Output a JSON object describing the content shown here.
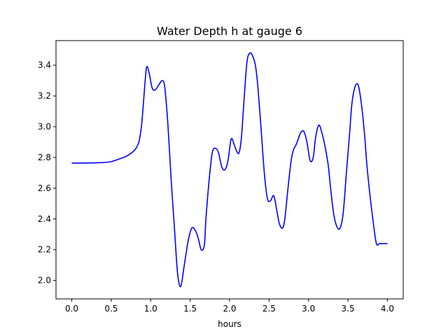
{
  "chart_data": {
    "type": "line",
    "title": "Water Depth h at gauge 6",
    "xlabel": "hours",
    "ylabel": "",
    "xlim": [
      -0.2,
      4.2
    ],
    "ylim": [
      1.88,
      3.56
    ],
    "xticks": [
      0.0,
      0.5,
      1.0,
      1.5,
      2.0,
      2.5,
      3.0,
      3.5,
      4.0
    ],
    "xtick_labels": [
      "0.0",
      "0.5",
      "1.0",
      "1.5",
      "2.0",
      "2.5",
      "3.0",
      "3.5",
      "4.0"
    ],
    "yticks": [
      2.0,
      2.2,
      2.4,
      2.6,
      2.8,
      3.0,
      3.2,
      3.4
    ],
    "ytick_labels": [
      "2.0",
      "2.2",
      "2.4",
      "2.6",
      "2.8",
      "3.0",
      "3.2",
      "3.4"
    ],
    "grid": false,
    "series": [
      {
        "color": "#0000ff",
        "x": [
          0.0,
          0.2,
          0.4,
          0.5,
          0.6,
          0.7,
          0.8,
          0.85,
          0.88,
          0.9,
          0.93,
          0.95,
          0.98,
          1.02,
          1.06,
          1.1,
          1.15,
          1.18,
          1.22,
          1.26,
          1.3,
          1.34,
          1.38,
          1.42,
          1.45,
          1.48,
          1.52,
          1.56,
          1.6,
          1.64,
          1.68,
          1.7,
          1.74,
          1.78,
          1.82,
          1.86,
          1.9,
          1.94,
          1.98,
          2.02,
          2.06,
          2.09,
          2.12,
          2.15,
          2.18,
          2.22,
          2.26,
          2.3,
          2.33,
          2.36,
          2.4,
          2.44,
          2.48,
          2.52,
          2.56,
          2.6,
          2.63,
          2.67,
          2.7,
          2.74,
          2.78,
          2.81,
          2.84,
          2.87,
          2.9,
          2.94,
          2.98,
          3.02,
          3.06,
          3.09,
          3.13,
          3.17,
          3.21,
          3.25,
          3.28,
          3.32,
          3.36,
          3.4,
          3.44,
          3.48,
          3.52,
          3.55,
          3.59,
          3.63,
          3.67,
          3.71,
          3.74,
          3.78,
          3.82,
          3.86,
          3.9,
          3.94,
          3.98,
          4.0
        ],
        "y": [
          2.763,
          2.764,
          2.767,
          2.773,
          2.79,
          2.81,
          2.85,
          2.9,
          2.99,
          3.1,
          3.3,
          3.39,
          3.35,
          3.25,
          3.24,
          3.27,
          3.3,
          3.25,
          3.0,
          2.65,
          2.35,
          2.05,
          1.96,
          2.08,
          2.18,
          2.27,
          2.34,
          2.33,
          2.28,
          2.2,
          2.23,
          2.4,
          2.65,
          2.83,
          2.86,
          2.83,
          2.74,
          2.72,
          2.78,
          2.92,
          2.88,
          2.84,
          2.83,
          2.93,
          3.15,
          3.42,
          3.48,
          3.45,
          3.39,
          3.25,
          2.98,
          2.7,
          2.53,
          2.52,
          2.55,
          2.45,
          2.37,
          2.34,
          2.4,
          2.6,
          2.78,
          2.85,
          2.88,
          2.92,
          2.96,
          2.97,
          2.9,
          2.78,
          2.8,
          2.93,
          3.01,
          2.96,
          2.87,
          2.75,
          2.6,
          2.43,
          2.35,
          2.34,
          2.44,
          2.7,
          2.95,
          3.15,
          3.26,
          3.27,
          3.15,
          2.95,
          2.75,
          2.55,
          2.38,
          2.24,
          2.24,
          2.24,
          2.24,
          2.24
        ]
      }
    ]
  }
}
